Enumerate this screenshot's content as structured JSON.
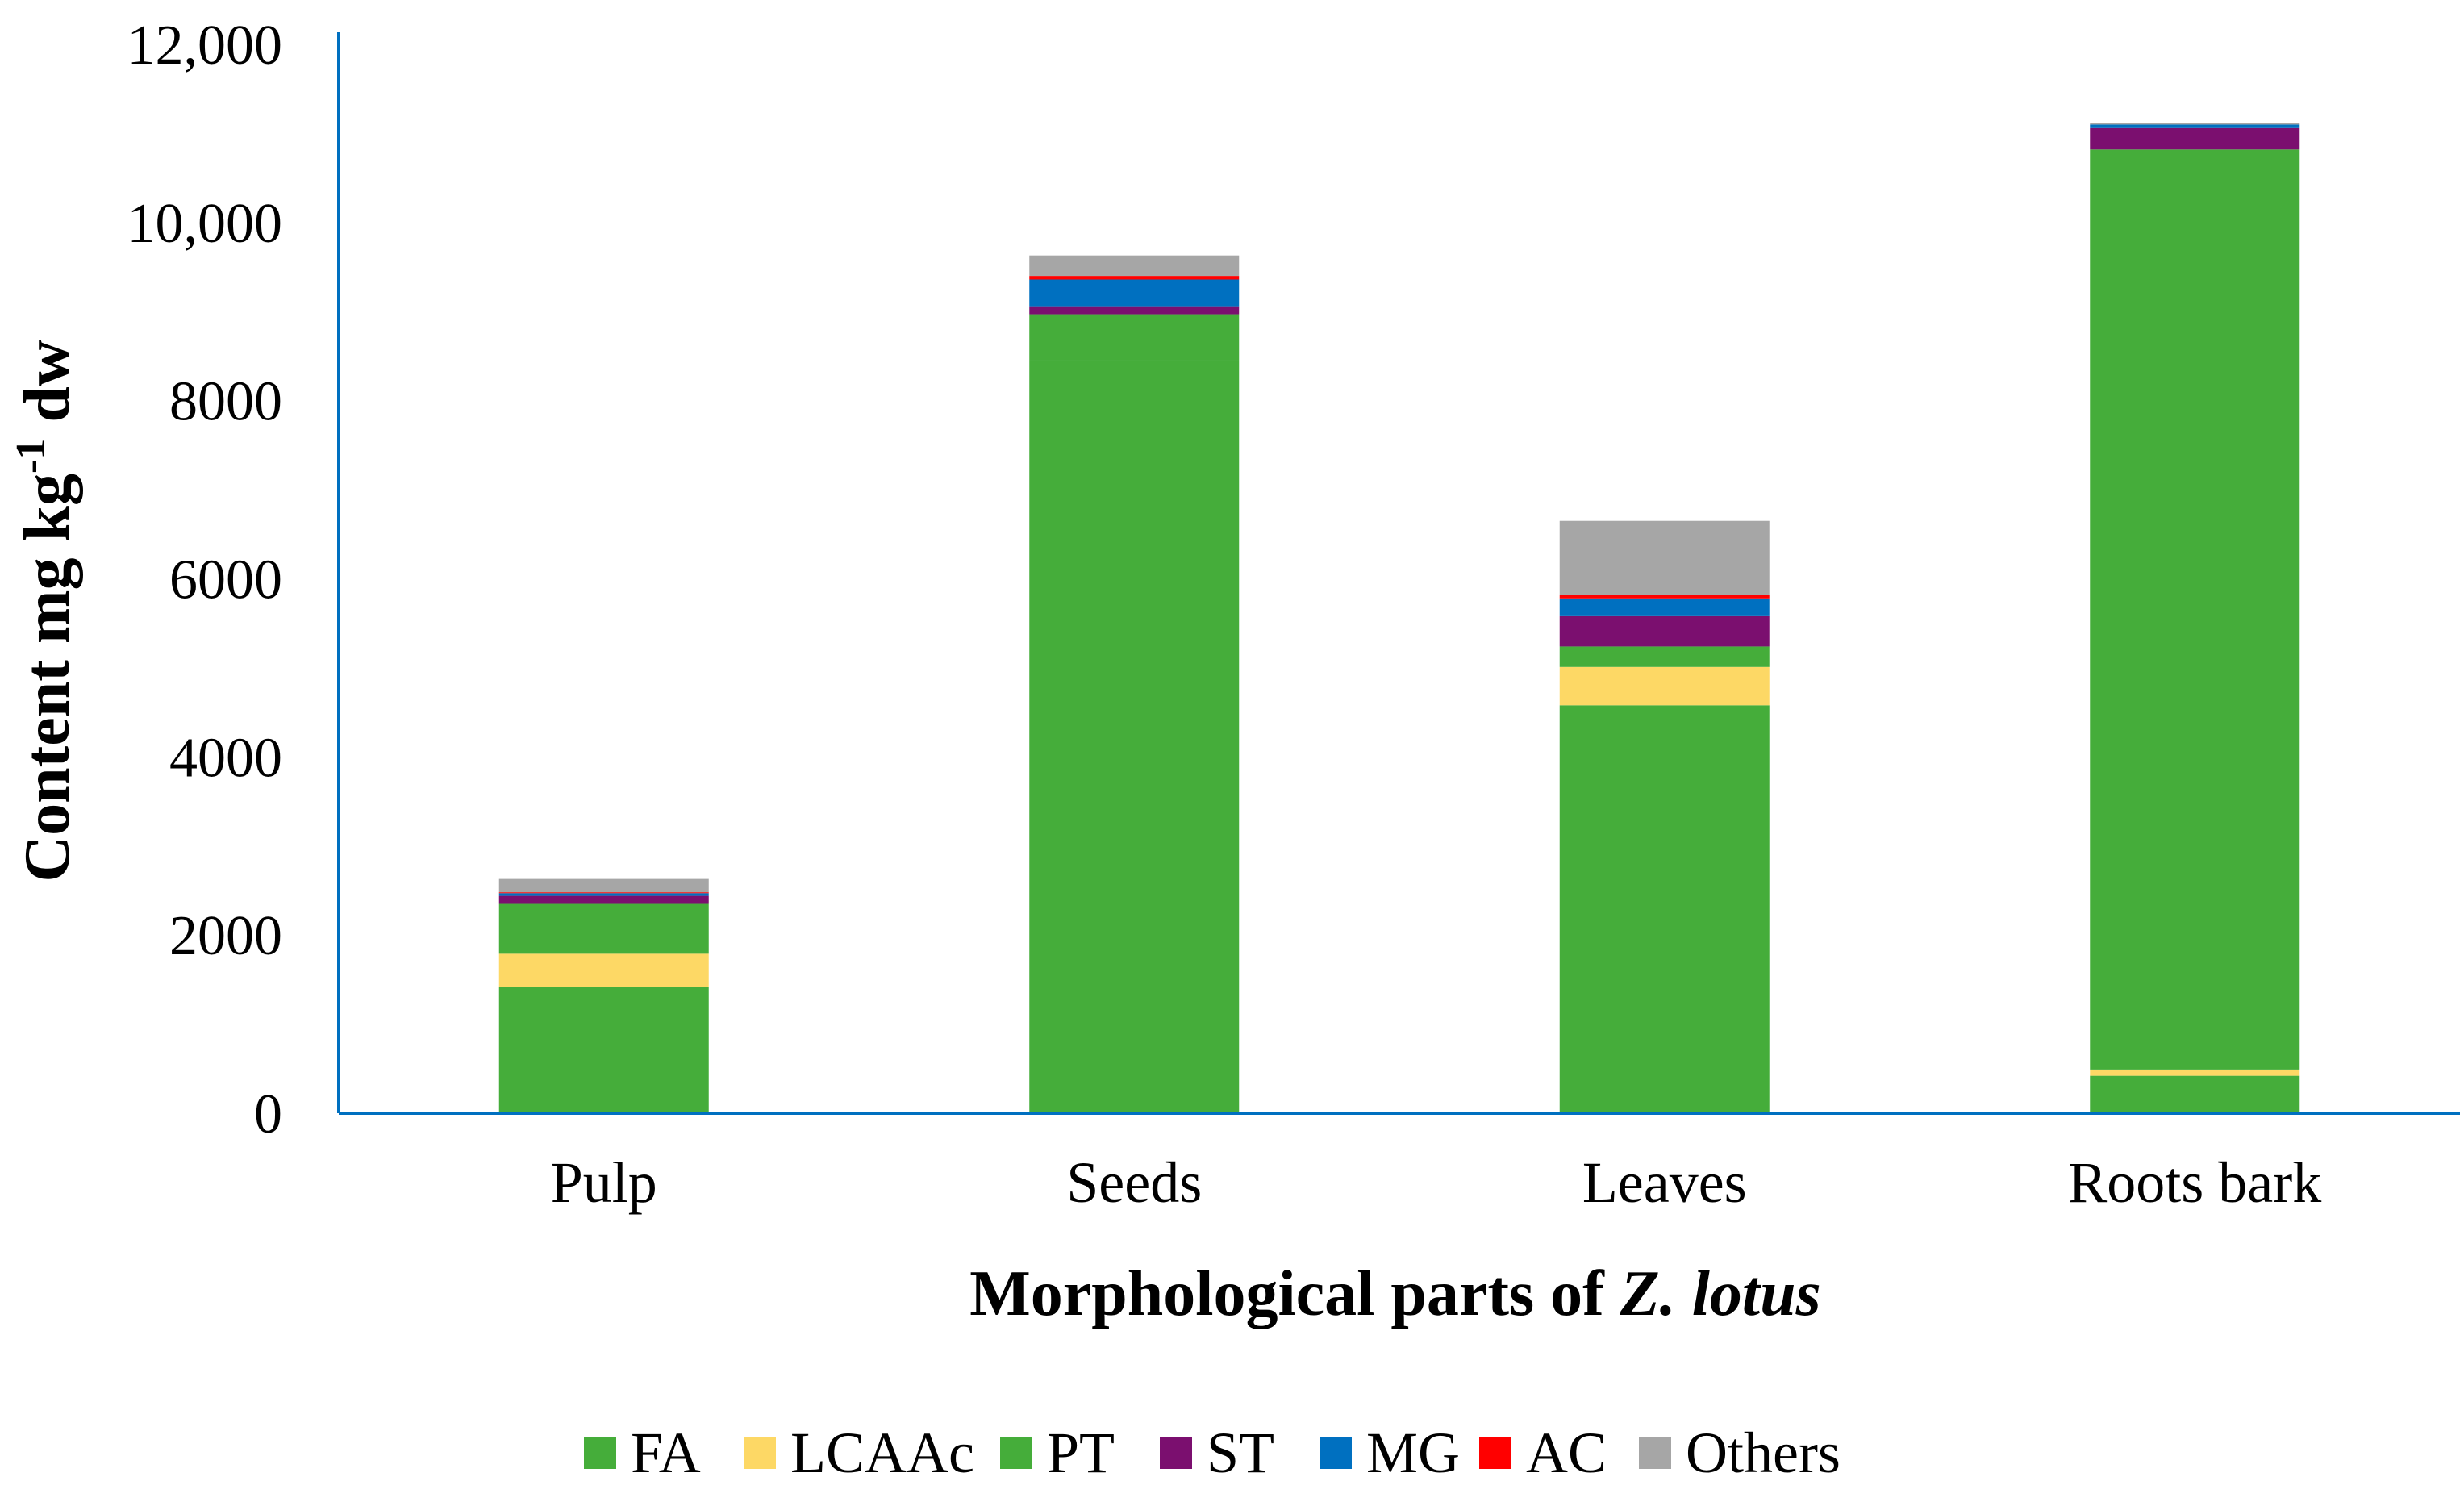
{
  "chart_data": {
    "type": "bar",
    "stacked": true,
    "categories": [
      "Pulp",
      "Seeds",
      "Leaves",
      "Roots bark"
    ],
    "series": [
      {
        "name": "FA",
        "color": "#45ad3a",
        "values": [
          1420,
          8450,
          4580,
          420
        ]
      },
      {
        "name": "LCAAc",
        "color": "#fdd865",
        "values": [
          370,
          0,
          430,
          70
        ]
      },
      {
        "name": "PT",
        "color": "#45ad3a",
        "values": [
          560,
          520,
          230,
          10330
        ]
      },
      {
        "name": "ST",
        "color": "#7b0f6f",
        "values": [
          90,
          90,
          340,
          240
        ]
      },
      {
        "name": "MG",
        "color": "#0070c0",
        "values": [
          30,
          300,
          200,
          40
        ]
      },
      {
        "name": "AC",
        "color": "#ff0000",
        "values": [
          10,
          40,
          40,
          0
        ]
      },
      {
        "name": "Others",
        "color": "#a6a6a6",
        "values": [
          150,
          230,
          830,
          20
        ]
      }
    ],
    "yticks": [
      "0",
      "2000",
      "4000",
      "6000",
      "8000",
      "10,000",
      "12,000"
    ],
    "ylim": [
      0,
      12000
    ],
    "ylabel": {
      "main": "Content mg kg",
      "sup": "-1",
      "tail": " dw"
    },
    "xlabel": {
      "main": "Morphological parts of ",
      "italic": "Z. lotus"
    },
    "legend_position": "bottom",
    "grid": false
  }
}
